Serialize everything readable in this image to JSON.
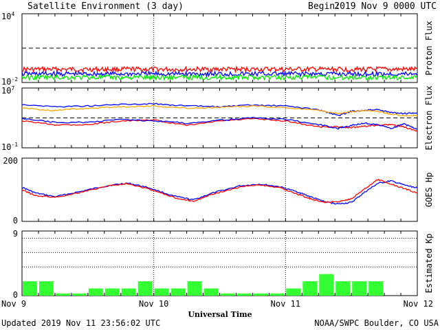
{
  "header": {
    "title": "Satellite Environment (3 day)",
    "begin_label": "Begin:",
    "begin_value": "2019 Nov 9 0000 UTC"
  },
  "footer": {
    "updated": "Updated 2019 Nov 11 23:56:02 UTC",
    "credit": "NOAA/SWPC Boulder, CO USA"
  },
  "x_axis": {
    "label": "Universal Time",
    "ticks": [
      "Nov 9",
      "Nov 10",
      "Nov 11",
      "Nov 12"
    ],
    "range_days": [
      0,
      3
    ]
  },
  "colors": {
    "red": "#ff0000",
    "blue": "#0000ff",
    "green": "#00e800",
    "orange": "#ffa500",
    "bar": "#33ff33"
  },
  "chart_data": [
    {
      "type": "line",
      "ylabel": "Proton Flux",
      "scale": "log",
      "ylim_exp": [
        -2,
        4
      ],
      "y_ticks": [
        {
          "base": "10",
          "exp": "4"
        },
        {
          "base": "10",
          "exp": "-2"
        }
      ],
      "threshold_exp": 1,
      "series": [
        {
          "color": "red",
          "level_exp": -0.85
        },
        {
          "color": "blue",
          "level_exp": -1.25
        },
        {
          "color": "green",
          "level_exp": -1.55
        }
      ]
    },
    {
      "type": "line",
      "ylabel": "Electron Flux",
      "scale": "log",
      "ylim_exp": [
        -1,
        7
      ],
      "y_ticks": [
        {
          "base": "10",
          "exp": "7"
        },
        {
          "base": "10",
          "exp": "-1"
        }
      ],
      "threshold_exp": 3,
      "series": [
        {
          "color": "red",
          "x": [
            0,
            0.25,
            0.5,
            0.75,
            1.0,
            1.25,
            1.5,
            1.75,
            2.0,
            2.25,
            2.4,
            2.5,
            2.6,
            2.7,
            2.8,
            2.9,
            3.0
          ],
          "y": [
            2.6,
            2.1,
            2.1,
            2.6,
            2.7,
            2.0,
            2.6,
            2.9,
            2.6,
            1.8,
            1.8,
            1.7,
            1.9,
            2.0,
            2.1,
            1.8,
            1.2
          ]
        },
        {
          "color": "blue",
          "x": [
            0,
            0.25,
            0.5,
            0.75,
            1.0,
            1.25,
            1.5,
            1.75,
            2.0,
            2.25,
            2.4,
            2.5,
            2.6,
            2.7,
            2.8,
            2.9,
            3.0
          ],
          "y": [
            2.9,
            2.4,
            2.4,
            2.8,
            2.6,
            2.3,
            2.7,
            3.0,
            2.8,
            2.1,
            1.6,
            2.0,
            2.3,
            2.1,
            1.6,
            2.2,
            1.5
          ]
        },
        {
          "color": "blue",
          "x": [
            0,
            0.25,
            0.5,
            0.75,
            1.0,
            1.25,
            1.5,
            1.75,
            2.0,
            2.25,
            2.4,
            2.5,
            2.6,
            2.7,
            2.8,
            2.9,
            3.0
          ],
          "y": [
            4.8,
            4.5,
            4.6,
            4.8,
            4.9,
            4.6,
            4.5,
            4.7,
            4.6,
            4.1,
            3.3,
            3.9,
            4.0,
            4.1,
            3.7,
            3.6,
            3.6
          ]
        },
        {
          "color": "orange",
          "x": [
            0,
            0.25,
            0.5,
            0.75,
            1.0,
            1.25,
            1.5,
            1.75,
            2.0,
            2.25,
            2.4,
            2.5,
            2.6,
            2.7,
            2.8,
            2.9,
            3.0
          ],
          "y": [
            4.3,
            4.0,
            4.3,
            4.5,
            4.6,
            4.3,
            4.4,
            4.6,
            4.4,
            4.0,
            3.6,
            3.8,
            4.0,
            3.9,
            3.5,
            3.3,
            3.3
          ]
        }
      ]
    },
    {
      "type": "line",
      "ylabel": "GOES Hp",
      "scale": "linear",
      "ylim": [
        0,
        200
      ],
      "y_ticks": [
        "200",
        "0"
      ],
      "series": [
        {
          "color": "blue",
          "x": [
            0,
            0.1,
            0.25,
            0.45,
            0.65,
            0.8,
            0.95,
            1.15,
            1.3,
            1.45,
            1.65,
            1.8,
            1.95,
            2.1,
            2.2,
            2.3,
            2.4,
            2.5,
            2.6,
            2.7,
            2.8,
            2.9,
            3.0
          ],
          "y": [
            108,
            90,
            78,
            95,
            113,
            121,
            108,
            80,
            68,
            90,
            112,
            118,
            110,
            92,
            76,
            62,
            55,
            60,
            92,
            120,
            128,
            115,
            106
          ]
        },
        {
          "color": "red",
          "x": [
            0,
            0.1,
            0.25,
            0.45,
            0.65,
            0.8,
            0.95,
            1.15,
            1.3,
            1.45,
            1.65,
            1.8,
            1.95,
            2.1,
            2.2,
            2.3,
            2.4,
            2.5,
            2.6,
            2.7,
            2.8,
            2.9,
            3.0
          ],
          "y": [
            100,
            82,
            76,
            92,
            112,
            120,
            104,
            76,
            64,
            86,
            108,
            116,
            107,
            85,
            70,
            60,
            62,
            72,
            102,
            132,
            118,
            104,
            90
          ]
        }
      ]
    },
    {
      "type": "bar",
      "ylabel": "Estimated Kp",
      "ylim": [
        0,
        9
      ],
      "y_ticks": [
        "9",
        "0"
      ],
      "dotted_levels": [
        4,
        6,
        8
      ],
      "categories_per_day": 8,
      "values": [
        2,
        2,
        0.3,
        0.3,
        1,
        1,
        1,
        2,
        1,
        1,
        2,
        1,
        0.3,
        0.3,
        0.3,
        0.3,
        1,
        2,
        3,
        2,
        2,
        2,
        0,
        0
      ]
    }
  ]
}
